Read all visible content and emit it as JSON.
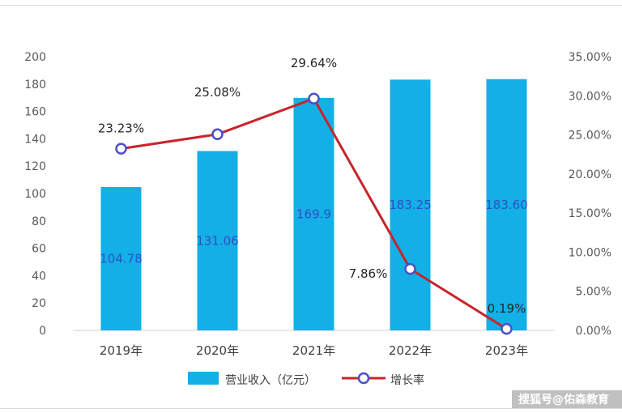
{
  "chart_data": {
    "type": "bar+line",
    "categories": [
      "2019年",
      "2020年",
      "2021年",
      "2022年",
      "2023年"
    ],
    "series": [
      {
        "name": "营业收入（亿元）",
        "type": "bar",
        "axis": "left",
        "values": [
          104.78,
          131.06,
          169.9,
          183.25,
          183.6
        ],
        "labels": [
          "104.78",
          "131.06",
          "169.9",
          "183.25",
          "183.60"
        ],
        "color": "#12b0e6"
      },
      {
        "name": "增长率",
        "type": "line",
        "axis": "right",
        "values": [
          23.23,
          25.08,
          29.64,
          7.86,
          0.19
        ],
        "labels": [
          "23.23%",
          "25.08%",
          "29.64%",
          "7.86%",
          "0.19%"
        ],
        "color": "#c8242b",
        "marker_color": "#4c4fc9"
      }
    ],
    "left_axis": {
      "ylim": [
        0,
        200
      ],
      "ticks": [
        0,
        20,
        40,
        60,
        80,
        100,
        120,
        140,
        160,
        180,
        200
      ],
      "tick_labels": [
        "0",
        "20",
        "40",
        "60",
        "80",
        "100",
        "120",
        "140",
        "160",
        "180",
        "200"
      ]
    },
    "right_axis": {
      "ylim": [
        0,
        35
      ],
      "ticks": [
        0,
        5,
        10,
        15,
        20,
        25,
        30,
        35
      ],
      "tick_labels": [
        "0.00%",
        "5.00%",
        "10.00%",
        "15.00%",
        "20.00%",
        "25.00%",
        "30.00%",
        "35.00%"
      ]
    },
    "grid": false,
    "legend": {
      "position": "bottom",
      "items": [
        "营业收入（亿元）",
        "增长率"
      ]
    }
  },
  "watermark": "搜狐号@佑森教育"
}
